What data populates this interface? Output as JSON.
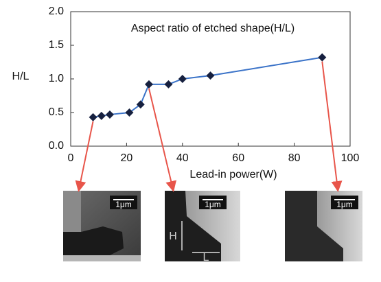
{
  "chart_data": {
    "type": "line",
    "title": "Aspect ratio of etched shape(H/L)",
    "x_label": "Lead-in power(W)",
    "y_label": "H/L",
    "x": [
      8,
      11,
      14,
      21,
      25,
      28,
      35,
      40,
      50,
      90
    ],
    "values": [
      0.43,
      0.45,
      0.47,
      0.5,
      0.62,
      0.92,
      0.92,
      1.0,
      1.05,
      1.32
    ],
    "color": "#3b73c8",
    "marker_color": "#16203f",
    "xlim": [
      0,
      100
    ],
    "xticks": [
      0,
      20,
      40,
      60,
      80,
      100
    ],
    "ylim": [
      0,
      2
    ],
    "yticks": [
      {
        "value": 0,
        "label": "0.0"
      },
      0.5,
      {
        "value": 1,
        "label": "1.0"
      },
      1.5,
      {
        "value": 2,
        "label": "2.0"
      }
    ]
  },
  "micrographs": [
    {
      "scale_bar": "1μm"
    },
    {
      "scale_bar": "1μm",
      "labels": [
        "H",
        "L"
      ]
    },
    {
      "scale_bar": "1μm"
    }
  ]
}
